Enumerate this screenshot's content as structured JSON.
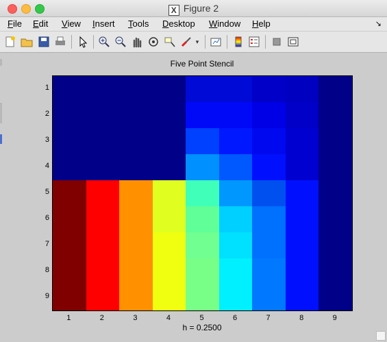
{
  "window": {
    "title": "Figure 2",
    "icon": "x11-icon"
  },
  "menubar": {
    "items": [
      "File",
      "Edit",
      "View",
      "Insert",
      "Tools",
      "Desktop",
      "Window",
      "Help"
    ],
    "underline": [
      "F",
      "E",
      "V",
      "I",
      "T",
      "D",
      "W",
      "H"
    ],
    "more_arrow": "↘"
  },
  "toolbar": {
    "icons": [
      "new-figure-icon",
      "open-file-icon",
      "save-icon",
      "print-icon",
      "pointer-icon",
      "zoom-in-icon",
      "zoom-out-icon",
      "pan-hand-icon",
      "rotate-3d-icon",
      "data-cursor-icon",
      "brush-icon",
      "brush-dropdown-icon",
      "link-plot-icon",
      "colorbar-icon",
      "legend-icon",
      "hide-plot-tools-icon",
      "show-plot-tools-icon"
    ]
  },
  "chart_data": {
    "type": "heatmap",
    "title": "Five Point Stencil",
    "xlabel": "h = 0.2500",
    "ylabel": "",
    "x_ticks": [
      "1",
      "2",
      "3",
      "4",
      "5",
      "6",
      "7",
      "8",
      "9"
    ],
    "y_ticks": [
      "1",
      "2",
      "3",
      "4",
      "5",
      "6",
      "7",
      "8",
      "9"
    ],
    "colormap": "jet",
    "grid": false,
    "values": [
      [
        0,
        0,
        0,
        0,
        2,
        2,
        1,
        1,
        0
      ],
      [
        0,
        0,
        0,
        0,
        3,
        3,
        2,
        1,
        0
      ],
      [
        0,
        0,
        0,
        0,
        5,
        3,
        3,
        1,
        0
      ],
      [
        0,
        0,
        0,
        0,
        10,
        5,
        3,
        1,
        0
      ],
      [
        62,
        53,
        44,
        35,
        21,
        11,
        5,
        3,
        0
      ],
      [
        62,
        53,
        44,
        35,
        22,
        13,
        6,
        3,
        0
      ],
      [
        62,
        53,
        44,
        35,
        22,
        14,
        6,
        3,
        0
      ],
      [
        62,
        53,
        44,
        35,
        23,
        15,
        7,
        3,
        0
      ],
      [
        62,
        53,
        44,
        35,
        23,
        15,
        7,
        3,
        0
      ]
    ],
    "colors": [
      [
        "#000088",
        "#000088",
        "#000088",
        "#000088",
        "#000ad6",
        "#000ad6",
        "#0000c8",
        "#0000c0",
        "#000088"
      ],
      [
        "#000088",
        "#000088",
        "#000088",
        "#000088",
        "#0008f8",
        "#0008f8",
        "#0000e6",
        "#0000c8",
        "#000088"
      ],
      [
        "#000088",
        "#000088",
        "#000088",
        "#000088",
        "#0040ff",
        "#0018ff",
        "#0008f0",
        "#0000d0",
        "#000088"
      ],
      [
        "#000088",
        "#000088",
        "#000088",
        "#000088",
        "#0090ff",
        "#0058ff",
        "#0010ff",
        "#0000d0",
        "#000088"
      ],
      [
        "#800000",
        "#ff0000",
        "#ff9000",
        "#e0ff20",
        "#40ffb8",
        "#0098ff",
        "#0050f0",
        "#0010ff",
        "#000088"
      ],
      [
        "#800000",
        "#ff0000",
        "#ff9000",
        "#e0ff20",
        "#60ff98",
        "#00d0ff",
        "#0070ff",
        "#0010ff",
        "#000088"
      ],
      [
        "#800000",
        "#ff0000",
        "#ff9000",
        "#f0ff10",
        "#70ff90",
        "#00e0ff",
        "#0070ff",
        "#0010ff",
        "#000088"
      ],
      [
        "#800000",
        "#ff0000",
        "#ff9000",
        "#f0ff10",
        "#78ff88",
        "#00f0ff",
        "#0078ff",
        "#0010ff",
        "#000088"
      ],
      [
        "#800000",
        "#ff0000",
        "#ff9000",
        "#f0ff10",
        "#78ff88",
        "#00f0ff",
        "#0078ff",
        "#0010ff",
        "#000088"
      ]
    ]
  }
}
